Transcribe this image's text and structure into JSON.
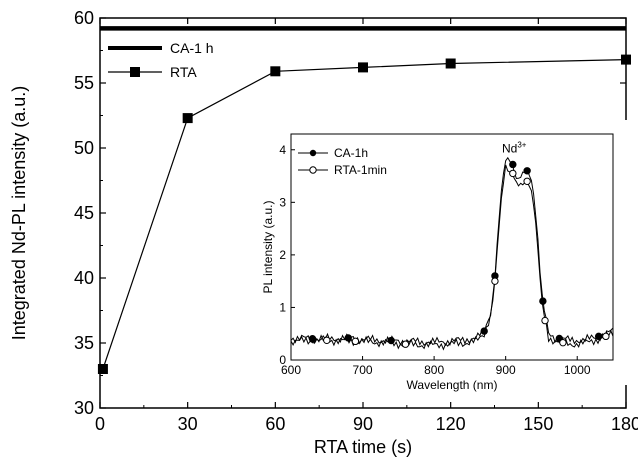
{
  "chart_data": {
    "type": "line",
    "xlabel": "RTA time (s)",
    "ylabel": "Integrated Nd-PL intensity (a.u.)",
    "xlim": [
      0,
      180
    ],
    "ylim": [
      30,
      60
    ],
    "xticks": [
      0,
      30,
      60,
      90,
      120,
      150,
      180
    ],
    "yticks": [
      30,
      35,
      40,
      45,
      50,
      55,
      60
    ],
    "legend_position": "top-left",
    "series": [
      {
        "name": "CA-1 h",
        "style": "thick-horizontal-line",
        "color": "#000000",
        "y": 59.2
      },
      {
        "name": "RTA",
        "style": "line-square-markers",
        "color": "#000000",
        "x": [
          1,
          30,
          60,
          90,
          120,
          180
        ],
        "values": [
          33.0,
          52.3,
          55.9,
          56.2,
          56.5,
          56.8
        ]
      }
    ],
    "inset": {
      "type": "line",
      "xlabel": "Wavelength (nm)",
      "ylabel": "PL intensity (a.u.)",
      "xlim": [
        600,
        1050
      ],
      "ylim": [
        0,
        4.3
      ],
      "xticks": [
        600,
        700,
        800,
        900,
        1000
      ],
      "yticks": [
        0,
        1,
        2,
        3,
        4
      ],
      "annotation": {
        "text": "Nd",
        "superscript": "3+",
        "x": 912,
        "y": 3.95
      },
      "legend_position": "top-left",
      "series": [
        {
          "name": "CA-1h",
          "marker": "filled-circle",
          "x": [
            600,
            640,
            680,
            720,
            760,
            800,
            840,
            860,
            870,
            880,
            885,
            890,
            895,
            900,
            905,
            910,
            915,
            920,
            925,
            930,
            935,
            940,
            945,
            950,
            955,
            960,
            970,
            990,
            1010,
            1030,
            1050
          ],
          "values": [
            0.42,
            0.4,
            0.42,
            0.38,
            0.36,
            0.34,
            0.38,
            0.42,
            0.55,
            0.95,
            1.6,
            2.55,
            3.35,
            3.8,
            3.85,
            3.72,
            3.45,
            3.45,
            3.55,
            3.6,
            3.5,
            3.1,
            2.3,
            1.3,
            0.85,
            0.5,
            0.42,
            0.38,
            0.38,
            0.45,
            0.55
          ],
          "marker_x": [
            630,
            680,
            740,
            870,
            885,
            910,
            930,
            952,
            975,
            1030
          ]
        },
        {
          "name": "RTA-1min",
          "marker": "open-circle",
          "x": [
            600,
            640,
            680,
            720,
            760,
            800,
            840,
            860,
            870,
            880,
            885,
            890,
            895,
            900,
            905,
            910,
            915,
            920,
            925,
            930,
            935,
            940,
            945,
            950,
            955,
            960,
            970,
            990,
            1010,
            1030,
            1050
          ],
          "values": [
            0.35,
            0.38,
            0.36,
            0.34,
            0.3,
            0.28,
            0.32,
            0.36,
            0.5,
            0.9,
            1.5,
            2.4,
            3.2,
            3.7,
            3.6,
            3.55,
            3.35,
            3.3,
            3.35,
            3.4,
            3.3,
            2.9,
            2.1,
            1.15,
            0.75,
            0.42,
            0.36,
            0.3,
            0.32,
            0.4,
            0.5
          ],
          "marker_x": [
            650,
            690,
            760,
            885,
            910,
            930,
            955,
            980,
            1040
          ]
        }
      ]
    }
  }
}
